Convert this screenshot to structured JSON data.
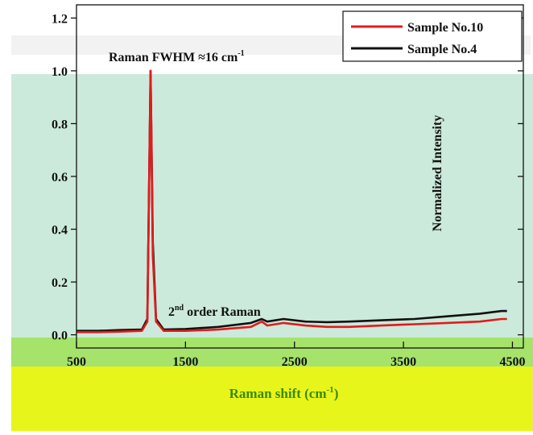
{
  "chart_data": {
    "type": "line",
    "title": "",
    "xlabel": "Raman shift (cm-1)",
    "xlabel_main": "Raman shift (cm",
    "xlabel_sup": "-1",
    "xlabel_close": ")",
    "ylabel": "Normalized Intensity",
    "xlim": [
      500,
      4600
    ],
    "ylim": [
      -0.05,
      1.25
    ],
    "x_ticks": [
      500,
      1500,
      2500,
      3500,
      4500
    ],
    "x_tick_labels": [
      "500",
      "1500",
      "2500",
      "3500",
      "4500"
    ],
    "y_ticks": [
      0.0,
      0.2,
      0.4,
      0.6,
      0.8,
      1.0,
      1.2
    ],
    "y_tick_labels": [
      "0.0",
      "0.2",
      "0.4",
      "0.6",
      "0.8",
      "1.0",
      "1.2"
    ],
    "grid": false,
    "legend_position": "top-right",
    "annotations": {
      "fwhm_main": "Raman FWHM ≈16 cm",
      "fwhm_sup": "-1",
      "second_order_num": "2",
      "second_order_sup": "nd",
      "second_order_text": " order Raman"
    },
    "series": [
      {
        "name": "Sample No.10",
        "color": "#e31a1c",
        "x": [
          500,
          700,
          900,
          1100,
          1150,
          1180,
          1200,
          1230,
          1300,
          1500,
          1800,
          2100,
          2200,
          2250,
          2400,
          2600,
          2800,
          3000,
          3300,
          3600,
          3900,
          4200,
          4400,
          4450
        ],
        "y": [
          0.01,
          0.01,
          0.012,
          0.015,
          0.05,
          1.0,
          0.3,
          0.05,
          0.015,
          0.015,
          0.02,
          0.03,
          0.05,
          0.035,
          0.045,
          0.035,
          0.03,
          0.03,
          0.035,
          0.04,
          0.045,
          0.05,
          0.06,
          0.06
        ]
      },
      {
        "name": "Sample No.4",
        "color": "#111111",
        "x": [
          500,
          700,
          900,
          1100,
          1150,
          1180,
          1200,
          1230,
          1300,
          1500,
          1800,
          2100,
          2200,
          2250,
          2400,
          2600,
          2800,
          3000,
          3300,
          3600,
          3900,
          4200,
          4400,
          4450
        ],
        "y": [
          0.015,
          0.015,
          0.018,
          0.02,
          0.06,
          1.0,
          0.35,
          0.06,
          0.02,
          0.022,
          0.03,
          0.045,
          0.06,
          0.05,
          0.06,
          0.05,
          0.048,
          0.05,
          0.055,
          0.06,
          0.07,
          0.08,
          0.09,
          0.09
        ]
      }
    ]
  }
}
